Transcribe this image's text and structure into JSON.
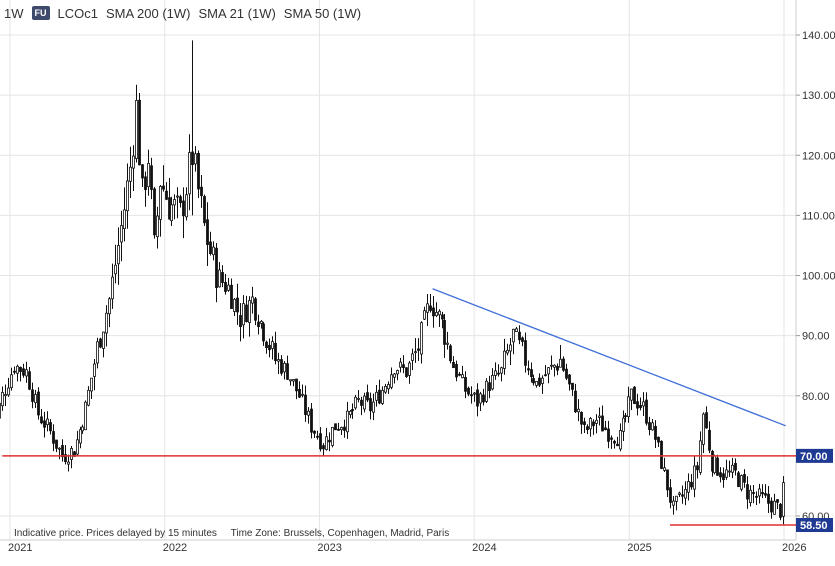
{
  "toolbar": {
    "interval": "1W",
    "badge": "FU",
    "symbol": "LCOc1",
    "indicators": [
      "SMA 200 (1W)",
      "SMA 21 (1W)",
      "SMA 50 (1W)"
    ]
  },
  "footer": {
    "note": "Indicative price. Prices delayed by 15 minutes",
    "timezone": "Time Zone: Brussels, Copenhagen, Madrid, Paris"
  },
  "colors": {
    "candle": "#111111",
    "grid": "#e4e4e4",
    "trendline": "#3f6fd8",
    "support": "#e03030",
    "price_badge": "#1f3a93"
  },
  "chart_data": {
    "type": "candlestick",
    "ylim": [
      57,
      146
    ],
    "xlim": [
      "2020-11-16",
      "2026-01-05"
    ],
    "y_ticks": [
      "60.00",
      "70.00",
      "80.00",
      "90.00",
      "100.00",
      "110.00",
      "120.00",
      "130.00",
      "140.00"
    ],
    "x_ticks": [
      {
        "label": "2021",
        "date": "2021-01-01"
      },
      {
        "label": "2022",
        "date": "2022-01-01"
      },
      {
        "label": "2023",
        "date": "2023-01-01"
      },
      {
        "label": "2024",
        "date": "2024-01-01"
      },
      {
        "label": "2025",
        "date": "2025-01-01"
      },
      {
        "label": "2026",
        "date": "2026-01-01"
      }
    ],
    "series_close": [
      [
        "2020-11-16",
        73
      ],
      [
        "2020-12-14",
        80
      ],
      [
        "2021-01-11",
        85
      ],
      [
        "2021-02-08",
        84
      ],
      [
        "2021-03-08",
        77
      ],
      [
        "2021-04-05",
        74
      ],
      [
        "2021-05-03",
        70
      ],
      [
        "2021-06-01",
        71
      ],
      [
        "2021-06-28",
        78
      ],
      [
        "2021-07-26",
        88
      ],
      [
        "2021-08-23",
        96
      ],
      [
        "2021-09-20",
        108
      ],
      [
        "2021-10-11",
        118
      ],
      [
        "2021-10-25",
        128
      ],
      [
        "2021-11-08",
        113
      ],
      [
        "2021-11-22",
        120
      ],
      [
        "2021-12-06",
        104
      ],
      [
        "2021-12-20",
        116
      ],
      [
        "2022-01-10",
        112
      ],
      [
        "2022-02-07",
        110
      ],
      [
        "2022-03-07",
        120
      ],
      [
        "2022-04-04",
        108
      ],
      [
        "2022-05-02",
        100
      ],
      [
        "2022-05-30",
        98
      ],
      [
        "2022-06-27",
        93
      ],
      [
        "2022-07-25",
        96
      ],
      [
        "2022-08-22",
        91
      ],
      [
        "2022-09-19",
        86
      ],
      [
        "2022-10-17",
        84
      ],
      [
        "2022-11-14",
        80
      ],
      [
        "2022-12-12",
        75
      ],
      [
        "2023-01-09",
        72
      ],
      [
        "2023-02-06",
        75
      ],
      [
        "2023-03-06",
        76
      ],
      [
        "2023-04-03",
        79
      ],
      [
        "2023-05-01",
        78
      ],
      [
        "2023-05-29",
        81
      ],
      [
        "2023-06-26",
        85
      ],
      [
        "2023-07-24",
        84
      ],
      [
        "2023-08-21",
        88
      ],
      [
        "2023-09-18",
        96
      ],
      [
        "2023-10-16",
        92
      ],
      [
        "2023-11-13",
        85
      ],
      [
        "2023-12-11",
        81
      ],
      [
        "2024-01-08",
        79
      ],
      [
        "2024-02-05",
        82
      ],
      [
        "2024-03-04",
        84
      ],
      [
        "2024-04-01",
        90
      ],
      [
        "2024-04-29",
        86
      ],
      [
        "2024-05-27",
        82
      ],
      [
        "2024-06-24",
        84
      ],
      [
        "2024-07-22",
        86
      ],
      [
        "2024-08-19",
        80
      ],
      [
        "2024-09-16",
        74
      ],
      [
        "2024-10-14",
        76
      ],
      [
        "2024-11-11",
        74
      ],
      [
        "2024-12-09",
        73
      ],
      [
        "2025-01-06",
        80
      ],
      [
        "2025-02-03",
        78
      ],
      [
        "2025-03-03",
        73
      ],
      [
        "2025-03-31",
        65
      ],
      [
        "2025-04-14",
        61
      ],
      [
        "2025-05-12",
        64
      ],
      [
        "2025-06-09",
        68
      ],
      [
        "2025-06-23",
        77
      ],
      [
        "2025-07-14",
        69
      ],
      [
        "2025-08-11",
        67
      ],
      [
        "2025-09-08",
        67
      ],
      [
        "2025-10-06",
        64
      ],
      [
        "2025-11-03",
        63
      ],
      [
        "2025-12-01",
        62
      ],
      [
        "2025-12-22",
        61
      ],
      [
        "2025-12-29",
        64
      ]
    ],
    "annotations": [
      {
        "name": "Descending trendline",
        "from": [
          "2023-09-25",
          97.8
        ],
        "to": [
          "2026-01-05",
          75
        ]
      },
      {
        "name": "Resistance",
        "level": 70,
        "from": "2020-12-14",
        "label": "70.00"
      },
      {
        "name": "Support",
        "level": 58.5,
        "from": "2025-04-07",
        "label": "58.50"
      }
    ]
  }
}
